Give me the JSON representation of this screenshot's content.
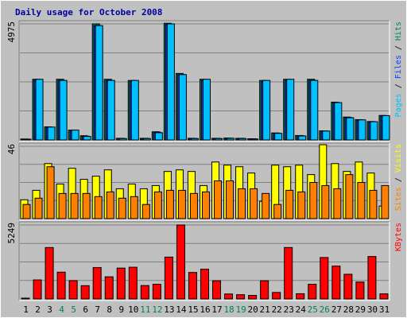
{
  "title": "Daily usage for October 2008",
  "colors": {
    "background": "#c0c0c0",
    "title": "#0000a0",
    "hits": "#00805c",
    "files": "#0040ff",
    "pages": "#00c0ff",
    "visits": "#ffff00",
    "sites": "#ff8000",
    "kbytes": "#ff0000",
    "weekend_day": "#00805c",
    "weekday": "#000000"
  },
  "chart_data": {
    "type": "bar",
    "title": "Daily usage for October 2008",
    "categories": [
      "1",
      "2",
      "3",
      "4",
      "5",
      "6",
      "7",
      "8",
      "9",
      "10",
      "11",
      "12",
      "13",
      "14",
      "15",
      "16",
      "17",
      "18",
      "19",
      "20",
      "21",
      "22",
      "23",
      "24",
      "25",
      "26",
      "27",
      "28",
      "29",
      "30",
      "31"
    ],
    "weekend_days": [
      "4",
      "5",
      "11",
      "12",
      "18",
      "19",
      "25",
      "26"
    ],
    "panels": [
      {
        "name": "hits-files-pages",
        "max_label": "4975",
        "ylim": [
          0,
          4975
        ],
        "legend": [
          {
            "text": "Pages",
            "color": "#00c0ff"
          },
          {
            "text": " / ",
            "color": "#000000"
          },
          {
            "text": "Files",
            "color": "#0040ff"
          },
          {
            "text": " / ",
            "color": "#000000"
          },
          {
            "text": "Hits",
            "color": "#00805c"
          }
        ],
        "series": [
          {
            "name": "Hits",
            "color": "#00805c",
            "values": [
              40,
              2600,
              560,
              2600,
              420,
              180,
              4975,
              2600,
              70,
              2550,
              70,
              350,
              5000,
              2850,
              70,
              2600,
              70,
              80,
              70,
              50,
              2550,
              300,
              2600,
              190,
              2600,
              390,
              1620,
              980,
              870,
              790,
              1050
            ]
          },
          {
            "name": "Files",
            "color": "#0040ff",
            "values": [
              35,
              2550,
              540,
              2550,
              410,
              160,
              4900,
              2550,
              65,
              2500,
              65,
              330,
              4950,
              2800,
              65,
              2550,
              65,
              75,
              65,
              45,
              2500,
              290,
              2550,
              180,
              2550,
              380,
              1600,
              960,
              850,
              770,
              1030
            ]
          },
          {
            "name": "Pages",
            "color": "#00c0ff",
            "values": [
              30,
              2600,
              550,
              2550,
              420,
              150,
              4900,
              2550,
              60,
              2550,
              60,
              310,
              4975,
              2800,
              60,
              2600,
              60,
              70,
              60,
              40,
              2550,
              280,
              2600,
              170,
              2550,
              380,
              1600,
              950,
              860,
              780,
              1040
            ]
          }
        ]
      },
      {
        "name": "visits-sites",
        "max_label": "46",
        "ylim": [
          0,
          46
        ],
        "legend": [
          {
            "text": "Sites",
            "color": "#ff8000"
          },
          {
            "text": " / ",
            "color": "#000000"
          },
          {
            "text": "Visits",
            "color": "#ffff00"
          }
        ],
        "series": [
          {
            "name": "Visits",
            "color": "#ffff00",
            "values": [
              12,
              18,
              35,
              22,
              32,
              25,
              27,
              31,
              19,
              22,
              19,
              21,
              30,
              31,
              30,
              21,
              36,
              34,
              33,
              29,
              11,
              34,
              33,
              34,
              28,
              47,
              35,
              30,
              36,
              29,
              8
            ]
          },
          {
            "name": "Sites",
            "color": "#ff8000",
            "values": [
              9,
              13,
              33,
              16,
              16,
              16,
              14,
              17,
              13,
              14,
              9,
              17,
              18,
              18,
              16,
              17,
              24,
              24,
              19,
              19,
              16,
              9,
              18,
              17,
              23,
              21,
              19,
              28,
              23,
              18,
              21
            ]
          }
        ]
      },
      {
        "name": "kbytes",
        "max_label": "5249",
        "ylim": [
          0,
          5249
        ],
        "legend": [
          {
            "text": "KBytes",
            "color": "#ff0000"
          }
        ],
        "series": [
          {
            "name": "KBytes",
            "color": "#ff0000",
            "values": [
              50,
              1350,
              3650,
              1900,
              1300,
              940,
              2230,
              1570,
              2190,
              2250,
              950,
              1040,
              2970,
              5249,
              1880,
              2110,
              1290,
              350,
              300,
              250,
              1290,
              460,
              3650,
              370,
              1040,
              2940,
              2330,
              1750,
              1200,
              3010,
              360
            ]
          }
        ]
      }
    ]
  }
}
